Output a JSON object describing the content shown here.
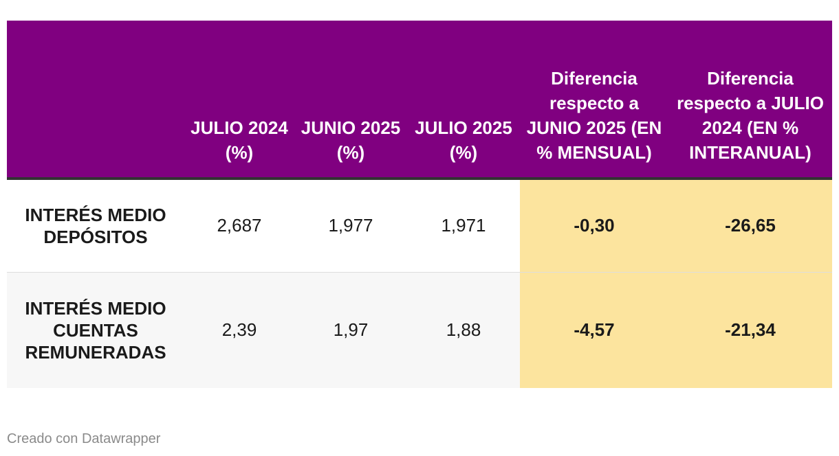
{
  "chart_data": {
    "type": "table",
    "columns": [
      "",
      "JULIO 2024 (%)",
      "JUNIO 2025 (%)",
      "JULIO 2025 (%)",
      "Diferencia respecto a JUNIO 2025 (EN % MENSUAL)",
      "Diferencia respecto a JULIO 2024 (EN % INTERANUAL)"
    ],
    "rows": [
      {
        "label": "INTERÉS MEDIO DEPÓSITOS",
        "values": [
          "2,687",
          "1,977",
          "1,971",
          "-0,30",
          "-26,65"
        ]
      },
      {
        "label": "INTERÉS MEDIO CUENTAS REMUNERADAS",
        "values": [
          "2,39",
          "1,97",
          "1,88",
          "-4,57",
          "-21,34"
        ]
      }
    ],
    "colors": {
      "header_bg": "#800080",
      "highlight_bg": "#fce49e"
    }
  },
  "footer": {
    "credit": "Creado con Datawrapper"
  }
}
